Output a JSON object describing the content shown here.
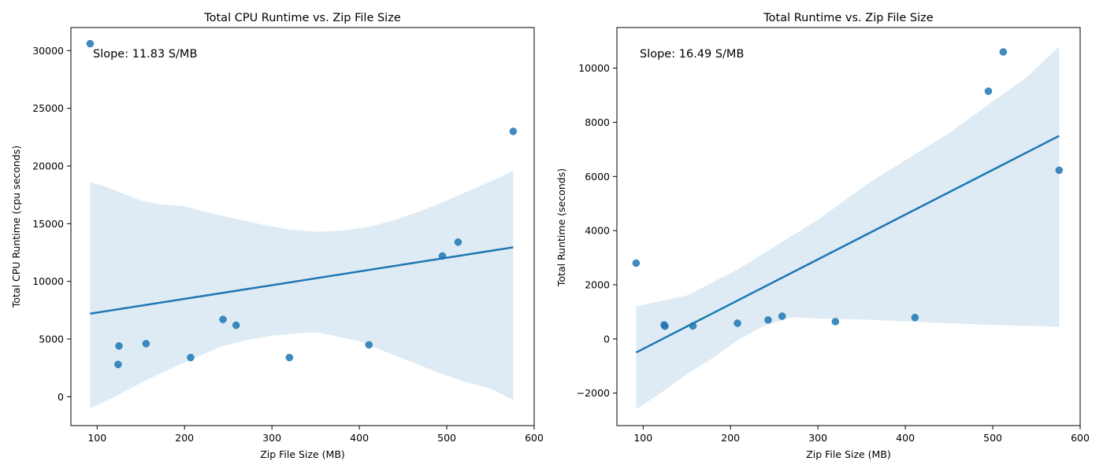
{
  "chart_data": [
    {
      "type": "scatter",
      "title": "Total CPU Runtime vs. Zip File Size",
      "xlabel": "Zip File Size (MB)",
      "ylabel": "Total CPU Runtime (cpu seconds)",
      "xlim": [
        70,
        600
      ],
      "ylim": [
        -2500,
        32000
      ],
      "xticks": [
        100,
        200,
        300,
        400,
        500,
        600
      ],
      "yticks": [
        0,
        5000,
        10000,
        15000,
        20000,
        25000,
        30000
      ],
      "annotation": "Slope: 11.83 S/MB",
      "point_color": "#1f77b4",
      "points": [
        {
          "x": 92,
          "y": 30600
        },
        {
          "x": 124,
          "y": 2800
        },
        {
          "x": 125,
          "y": 4400
        },
        {
          "x": 156,
          "y": 4600
        },
        {
          "x": 207,
          "y": 3400
        },
        {
          "x": 244,
          "y": 6700
        },
        {
          "x": 259,
          "y": 6200
        },
        {
          "x": 320,
          "y": 3400
        },
        {
          "x": 411,
          "y": 4500
        },
        {
          "x": 495,
          "y": 12200
        },
        {
          "x": 513,
          "y": 13400
        },
        {
          "x": 576,
          "y": 23000
        }
      ],
      "fit_line": [
        {
          "x": 92,
          "y": 7200
        },
        {
          "x": 576,
          "y": 12950
        }
      ],
      "confidence_band": {
        "upper": [
          {
            "x": 92,
            "y": 18600
          },
          {
            "x": 110,
            "y": 18200
          },
          {
            "x": 130,
            "y": 17600
          },
          {
            "x": 150,
            "y": 17000
          },
          {
            "x": 170,
            "y": 16700
          },
          {
            "x": 200,
            "y": 16500
          },
          {
            "x": 230,
            "y": 15900
          },
          {
            "x": 260,
            "y": 15400
          },
          {
            "x": 290,
            "y": 14900
          },
          {
            "x": 320,
            "y": 14500
          },
          {
            "x": 350,
            "y": 14300
          },
          {
            "x": 380,
            "y": 14400
          },
          {
            "x": 410,
            "y": 14700
          },
          {
            "x": 440,
            "y": 15300
          },
          {
            "x": 470,
            "y": 16100
          },
          {
            "x": 500,
            "y": 17000
          },
          {
            "x": 530,
            "y": 18000
          },
          {
            "x": 560,
            "y": 19000
          },
          {
            "x": 576,
            "y": 19600
          }
        ],
        "lower": [
          {
            "x": 92,
            "y": -1000
          },
          {
            "x": 120,
            "y": 0
          },
          {
            "x": 150,
            "y": 1200
          },
          {
            "x": 180,
            "y": 2300
          },
          {
            "x": 210,
            "y": 3300
          },
          {
            "x": 240,
            "y": 4300
          },
          {
            "x": 270,
            "y": 4900
          },
          {
            "x": 300,
            "y": 5300
          },
          {
            "x": 330,
            "y": 5500
          },
          {
            "x": 350,
            "y": 5600
          },
          {
            "x": 370,
            "y": 5300
          },
          {
            "x": 400,
            "y": 4800
          },
          {
            "x": 430,
            "y": 3900
          },
          {
            "x": 460,
            "y": 3000
          },
          {
            "x": 490,
            "y": 2100
          },
          {
            "x": 520,
            "y": 1300
          },
          {
            "x": 550,
            "y": 700
          },
          {
            "x": 576,
            "y": -300
          }
        ]
      }
    },
    {
      "type": "scatter",
      "title": "Total Runtime vs. Zip File Size",
      "xlabel": "Zip File Size (MB)",
      "ylabel": "Total Runtime (seconds)",
      "xlim": [
        70,
        600
      ],
      "ylim": [
        -3200,
        11500
      ],
      "xticks": [
        100,
        200,
        300,
        400,
        500,
        600
      ],
      "yticks": [
        -2000,
        0,
        2000,
        4000,
        6000,
        8000,
        10000
      ],
      "annotation": "Slope: 16.49 S/MB",
      "point_color": "#1f77b4",
      "points": [
        {
          "x": 92,
          "y": 2800
        },
        {
          "x": 124,
          "y": 520
        },
        {
          "x": 125,
          "y": 470
        },
        {
          "x": 157,
          "y": 480
        },
        {
          "x": 208,
          "y": 580
        },
        {
          "x": 243,
          "y": 700
        },
        {
          "x": 259,
          "y": 840
        },
        {
          "x": 320,
          "y": 640
        },
        {
          "x": 411,
          "y": 790
        },
        {
          "x": 495,
          "y": 9150
        },
        {
          "x": 512,
          "y": 10600
        },
        {
          "x": 576,
          "y": 6230
        }
      ],
      "fit_line": [
        {
          "x": 92,
          "y": -500
        },
        {
          "x": 576,
          "y": 7500
        }
      ],
      "confidence_band": {
        "upper": [
          {
            "x": 92,
            "y": 1200
          },
          {
            "x": 120,
            "y": 1400
          },
          {
            "x": 150,
            "y": 1600
          },
          {
            "x": 180,
            "y": 2100
          },
          {
            "x": 210,
            "y": 2600
          },
          {
            "x": 240,
            "y": 3200
          },
          {
            "x": 270,
            "y": 3800
          },
          {
            "x": 300,
            "y": 4400
          },
          {
            "x": 330,
            "y": 5100
          },
          {
            "x": 360,
            "y": 5800
          },
          {
            "x": 390,
            "y": 6400
          },
          {
            "x": 420,
            "y": 7000
          },
          {
            "x": 450,
            "y": 7600
          },
          {
            "x": 480,
            "y": 8300
          },
          {
            "x": 510,
            "y": 9000
          },
          {
            "x": 540,
            "y": 9700
          },
          {
            "x": 576,
            "y": 10800
          }
        ],
        "lower": [
          {
            "x": 92,
            "y": -2600
          },
          {
            "x": 120,
            "y": -2000
          },
          {
            "x": 150,
            "y": -1300
          },
          {
            "x": 180,
            "y": -700
          },
          {
            "x": 210,
            "y": 0
          },
          {
            "x": 240,
            "y": 500
          },
          {
            "x": 270,
            "y": 800
          },
          {
            "x": 300,
            "y": 750
          },
          {
            "x": 350,
            "y": 720
          },
          {
            "x": 400,
            "y": 650
          },
          {
            "x": 450,
            "y": 580
          },
          {
            "x": 500,
            "y": 520
          },
          {
            "x": 576,
            "y": 450
          }
        ]
      }
    }
  ]
}
